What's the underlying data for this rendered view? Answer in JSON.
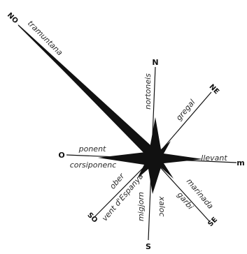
{
  "colors": {
    "ink": "#111111",
    "label": "#2a2a2a",
    "background": "#ffffff"
  },
  "cardinals": {
    "north": "N",
    "northeast": "NE",
    "east": "m",
    "southeast": "SE",
    "south": "S",
    "southwest": "SO",
    "west": "O",
    "northwest": "NO"
  },
  "winds": {
    "northwest": "tramuntana",
    "north": "nortoneis",
    "northeast": "gregal",
    "west_upper": "ponent",
    "west_lower": "corsiponenc",
    "east": "llevant",
    "southeast_outer": "marinada",
    "southeast_inner": "garbi",
    "south_left": "migjorn",
    "south_right": "xaloc",
    "southwest_upper": "ober",
    "southwest_lower": "vent d'Espanya"
  }
}
